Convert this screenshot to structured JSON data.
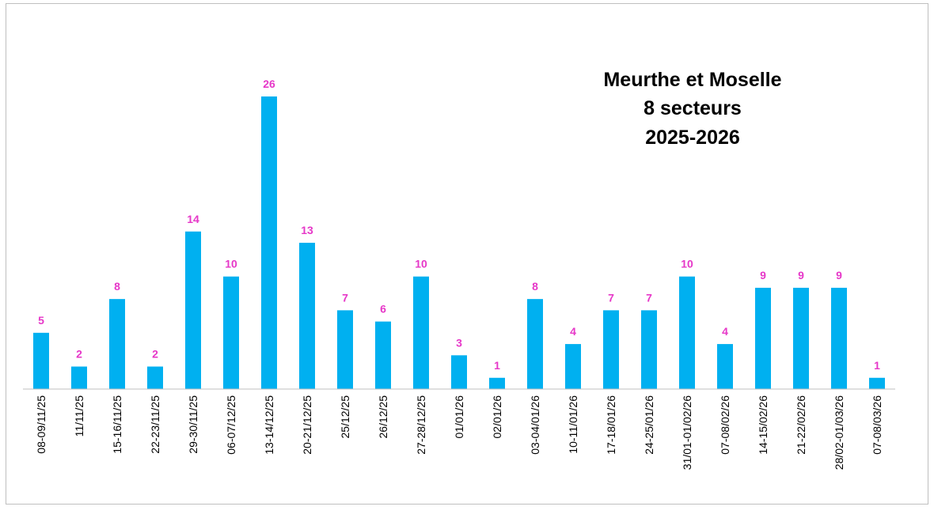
{
  "chart_data": {
    "type": "bar",
    "title": [
      "Meurthe et Moselle",
      "8 secteurs",
      "2025-2026"
    ],
    "categories": [
      "08-09/11/25",
      "11/11/25",
      "15-16/11/25",
      "22-23/11/25",
      "29-30/11/25",
      "06-07/12/25",
      "13-14/12/25",
      "20-21/12/25",
      "25/12/25",
      "26/12/25",
      "27-28/12/25",
      "01/01/26",
      "02/01/26",
      "03-04/01/26",
      "10-11/01/26",
      "17-18/01/26",
      "24-25/01/26",
      "31/01-01/02/26",
      "07-08/02/26",
      "14-15/02/26",
      "21-22/02/26",
      "28/02-01/03/26",
      "07-08/03/26"
    ],
    "values": [
      5,
      2,
      8,
      2,
      14,
      10,
      26,
      13,
      7,
      6,
      10,
      3,
      1,
      8,
      4,
      7,
      7,
      10,
      4,
      9,
      9,
      9,
      1
    ],
    "ylim": [
      0,
      26
    ],
    "xlabel": "",
    "ylabel": "",
    "grid": false,
    "legend": "none",
    "bar_color": "#00b0f0",
    "label_color": "#e637c8",
    "axis_color": "#bfbfbf"
  }
}
